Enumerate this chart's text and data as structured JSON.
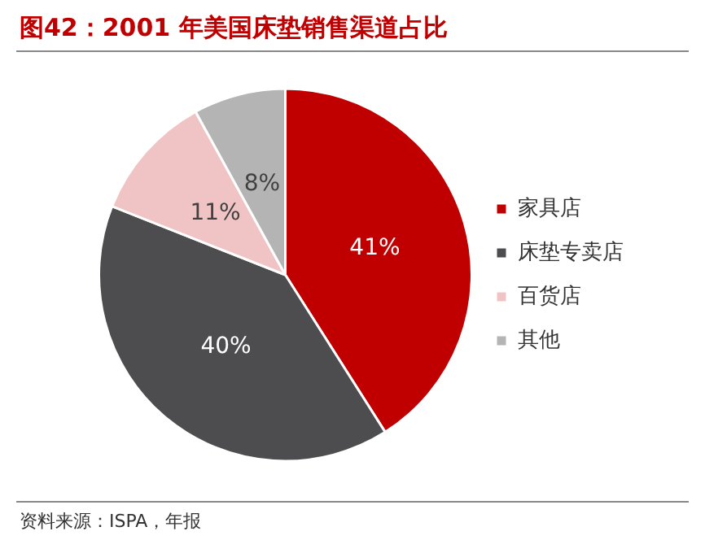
{
  "chart_data": {
    "type": "pie",
    "title": "图42：2001 年美国床垫销售渠道占比",
    "categories": [
      "家具店",
      "床垫专卖店",
      "百货店",
      "其他"
    ],
    "values": [
      41,
      40,
      11,
      8
    ],
    "colors": [
      "#c00000",
      "#4d4d4f",
      "#f0c4c4",
      "#b4b4b4"
    ],
    "value_labels": [
      "41%",
      "40%",
      "11%",
      "8%"
    ],
    "legend": "right",
    "annotations": [
      "资料来源：ISPA，年报"
    ]
  }
}
